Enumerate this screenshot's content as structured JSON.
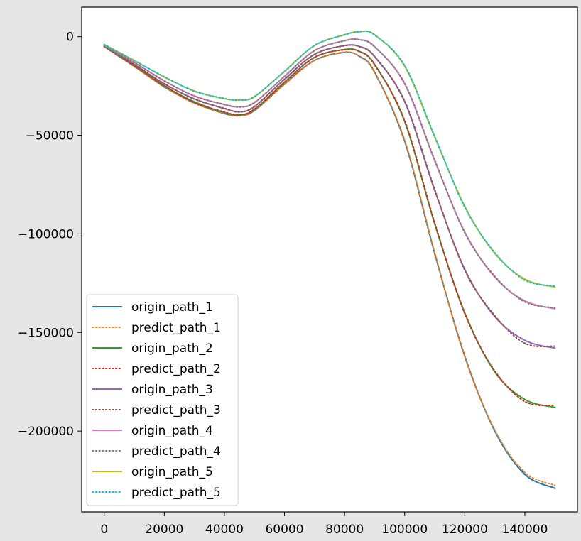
{
  "chart_data": {
    "type": "line",
    "title": "",
    "xlabel": "",
    "ylabel": "",
    "xlim": [
      -7500,
      157500
    ],
    "ylim": [
      -241000,
      15000
    ],
    "xticks": [
      0,
      20000,
      40000,
      60000,
      80000,
      100000,
      120000,
      140000
    ],
    "xtick_labels": [
      "0",
      "20000",
      "40000",
      "60000",
      "80000",
      "100000",
      "120000",
      "140000"
    ],
    "yticks": [
      0,
      -50000,
      -100000,
      -150000,
      -200000
    ],
    "ytick_labels": [
      "0",
      "−50000",
      "−100000",
      "−150000",
      "−200000"
    ],
    "grid": false,
    "legend_position": "lower-left",
    "x": [
      0,
      10000,
      20000,
      30000,
      40000,
      45000,
      50000,
      60000,
      70000,
      80000,
      85000,
      90000,
      100000,
      110000,
      120000,
      130000,
      140000,
      150000
    ],
    "series": [
      {
        "name": "origin_path_1",
        "style": "solid",
        "color": "#1f77b4",
        "values": [
          -5000,
          -15000,
          -25500,
          -33500,
          -39000,
          -40000,
          -37500,
          -24000,
          -12000,
          -8000,
          -10000,
          -18000,
          -53000,
          -110000,
          -162000,
          -200000,
          -222000,
          -229000
        ]
      },
      {
        "name": "predict_path_1",
        "style": "dotted",
        "color": "#ff7f0e",
        "values": [
          -5000,
          -15200,
          -25300,
          -33800,
          -38800,
          -40200,
          -37300,
          -24200,
          -12100,
          -7800,
          -10200,
          -18300,
          -52500,
          -109500,
          -162500,
          -199500,
          -221000,
          -227500
        ]
      },
      {
        "name": "origin_path_2",
        "style": "solid",
        "color": "#2ca02c",
        "values": [
          -5000,
          -14500,
          -25000,
          -33000,
          -38500,
          -39500,
          -37000,
          -23000,
          -10500,
          -6500,
          -7500,
          -14000,
          -43000,
          -95000,
          -140000,
          -170000,
          -184000,
          -188000
        ]
      },
      {
        "name": "predict_path_2",
        "style": "dotted",
        "color": "#d62728",
        "values": [
          -5000,
          -14700,
          -24800,
          -33400,
          -38200,
          -39700,
          -36700,
          -23200,
          -10400,
          -6600,
          -7600,
          -14300,
          -42500,
          -94500,
          -140500,
          -169500,
          -185000,
          -187000
        ]
      },
      {
        "name": "origin_path_3",
        "style": "solid",
        "color": "#9467bd",
        "values": [
          -5000,
          -14000,
          -24000,
          -31500,
          -36500,
          -38000,
          -35500,
          -21500,
          -9000,
          -4500,
          -5000,
          -10000,
          -33000,
          -78000,
          -118000,
          -142000,
          -154000,
          -158000
        ]
      },
      {
        "name": "predict_path_3",
        "style": "dotted",
        "color": "#8c564b",
        "values": [
          -5000,
          -14200,
          -23800,
          -31700,
          -36300,
          -38200,
          -35300,
          -21700,
          -8900,
          -4600,
          -5100,
          -10200,
          -32600,
          -77500,
          -118500,
          -141500,
          -155500,
          -157000
        ]
      },
      {
        "name": "origin_path_4",
        "style": "solid",
        "color": "#e377c2",
        "values": [
          -4500,
          -13000,
          -22500,
          -30000,
          -34500,
          -35500,
          -33500,
          -20000,
          -7000,
          -2000,
          -1500,
          -5000,
          -24000,
          -63000,
          -99000,
          -122000,
          -134000,
          -138000
        ]
      },
      {
        "name": "predict_path_4",
        "style": "dotted",
        "color": "#7f7f7f",
        "values": [
          -4500,
          -13200,
          -22300,
          -30200,
          -34300,
          -35700,
          -33300,
          -20200,
          -7100,
          -2100,
          -1600,
          -5200,
          -23600,
          -62500,
          -99500,
          -121500,
          -134500,
          -137500
        ]
      },
      {
        "name": "origin_path_5",
        "style": "solid",
        "color": "#bcbd22",
        "values": [
          -4000,
          -12000,
          -20500,
          -27500,
          -31500,
          -32000,
          -30500,
          -17500,
          -4500,
          1000,
          2500,
          1000,
          -15000,
          -51000,
          -86000,
          -110000,
          -123000,
          -127000
        ]
      },
      {
        "name": "predict_path_5",
        "style": "dotted",
        "color": "#17becf",
        "values": [
          -4000,
          -12200,
          -20300,
          -27700,
          -31300,
          -32200,
          -30300,
          -17700,
          -4400,
          900,
          2600,
          800,
          -14600,
          -50500,
          -86500,
          -109500,
          -123500,
          -126500
        ]
      }
    ]
  }
}
